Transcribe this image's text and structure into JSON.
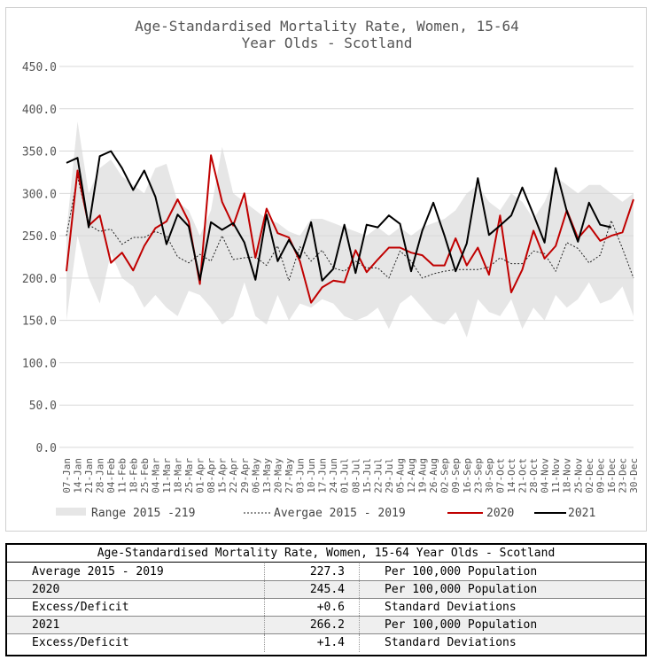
{
  "chart_data": {
    "type": "line",
    "title": [
      "Age-Standardised Mortality Rate, Women, 15-64",
      "Year Olds - Scotland"
    ],
    "ylim": [
      0,
      450
    ],
    "yticks": [
      "0.0",
      "50.0",
      "100.0",
      "150.0",
      "200.0",
      "250.0",
      "300.0",
      "350.0",
      "400.0",
      "450.0"
    ],
    "categories": [
      "07-Jan",
      "14-Jan",
      "21-Jan",
      "28-Jan",
      "04-Feb",
      "11-Feb",
      "18-Feb",
      "25-Feb",
      "04-Mar",
      "11-Mar",
      "18-Mar",
      "25-Mar",
      "01-Apr",
      "08-Apr",
      "15-Apr",
      "22-Apr",
      "29-Apr",
      "06-May",
      "13-May",
      "20-May",
      "27-May",
      "03-Jun",
      "10-Jun",
      "17-Jun",
      "24-Jun",
      "01-Jul",
      "08-Jul",
      "15-Jul",
      "22-Jul",
      "29-Jul",
      "05-Aug",
      "12-Aug",
      "19-Aug",
      "26-Aug",
      "02-Sep",
      "09-Sep",
      "16-Sep",
      "23-Sep",
      "30-Sep",
      "07-Oct",
      "14-Oct",
      "21-Oct",
      "28-Oct",
      "04-Nov",
      "11-Nov",
      "18-Nov",
      "25-Nov",
      "02-Dec",
      "09-Dec",
      "16-Dec",
      "23-Dec",
      "30-Dec"
    ],
    "series": [
      {
        "name": "Range 2015 -219",
        "kind": "band",
        "color": "#e6e6e6",
        "low": [
          150,
          250,
          200,
          170,
          230,
          200,
          190,
          165,
          180,
          165,
          155,
          185,
          180,
          165,
          145,
          155,
          195,
          155,
          145,
          180,
          150,
          170,
          165,
          175,
          170,
          155,
          150,
          155,
          165,
          140,
          170,
          180,
          165,
          150,
          145,
          160,
          130,
          175,
          160,
          155,
          175,
          140,
          165,
          150,
          180,
          165,
          175,
          195,
          170,
          175,
          190,
          155
        ],
        "high": [
          255,
          385,
          300,
          330,
          340,
          320,
          310,
          300,
          330,
          335,
          290,
          280,
          250,
          280,
          355,
          300,
          290,
          280,
          270,
          265,
          255,
          250,
          270,
          270,
          265,
          260,
          255,
          250,
          260,
          250,
          260,
          250,
          260,
          265,
          270,
          280,
          300,
          310,
          290,
          280,
          300,
          290,
          270,
          290,
          320,
          310,
          300,
          310,
          310,
          300,
          290,
          300
        ]
      },
      {
        "name": "Avergae 2015 - 2019",
        "kind": "dashed",
        "color": "#222222",
        "values": [
          250,
          320,
          263,
          255,
          258,
          240,
          248,
          248,
          255,
          250,
          225,
          218,
          228,
          220,
          250,
          222,
          224,
          225,
          215,
          238,
          197,
          237,
          220,
          233,
          212,
          208,
          220,
          212,
          212,
          200,
          232,
          220,
          200,
          205,
          208,
          210,
          210,
          210,
          213,
          224,
          217,
          217,
          232,
          229,
          208,
          242,
          235,
          218,
          227,
          268,
          235,
          200
        ]
      },
      {
        "name": "2020",
        "kind": "line",
        "color": "#c00000",
        "values": [
          208,
          327,
          262,
          274,
          218,
          230,
          209,
          238,
          259,
          267,
          293,
          267,
          193,
          345,
          290,
          262,
          300,
          224,
          282,
          253,
          248,
          220,
          171,
          189,
          197,
          195,
          233,
          207,
          222,
          236,
          236,
          230,
          227,
          215,
          215,
          247,
          215,
          236,
          204,
          274,
          183,
          210,
          256,
          223,
          238,
          280,
          247,
          262,
          244,
          250,
          254,
          293
        ]
      },
      {
        "name": "2021",
        "kind": "line",
        "color": "#000000",
        "values": [
          336,
          342,
          260,
          344,
          350,
          330,
          304,
          327,
          296,
          240,
          275,
          261,
          198,
          266,
          257,
          265,
          242,
          198,
          275,
          220,
          245,
          224,
          266,
          197,
          211,
          263,
          206,
          263,
          260,
          274,
          264,
          208,
          256,
          289,
          250,
          208,
          241,
          318,
          251,
          262,
          274,
          307,
          275,
          242,
          330,
          279,
          243,
          289,
          263,
          260,
          null,
          null
        ]
      }
    ]
  },
  "table": {
    "header": "Age-Standardised Mortality Rate, Women, 15-64 Year Olds - Scotland",
    "rows": [
      {
        "label": "Average 2015 - 2019",
        "value": "227.3",
        "unit": "Per 100,000 Population"
      },
      {
        "label": "2020",
        "value": "245.4",
        "unit": "Per 100,000 Population"
      },
      {
        "label": "Excess/Deficit",
        "value": "+0.6",
        "unit": "Standard Deviations"
      },
      {
        "label": "2021",
        "value": "266.2",
        "unit": "Per 100,000 Population"
      },
      {
        "label": "Excess/Deficit",
        "value": "+1.4",
        "unit": "Standard Deviations"
      }
    ]
  }
}
